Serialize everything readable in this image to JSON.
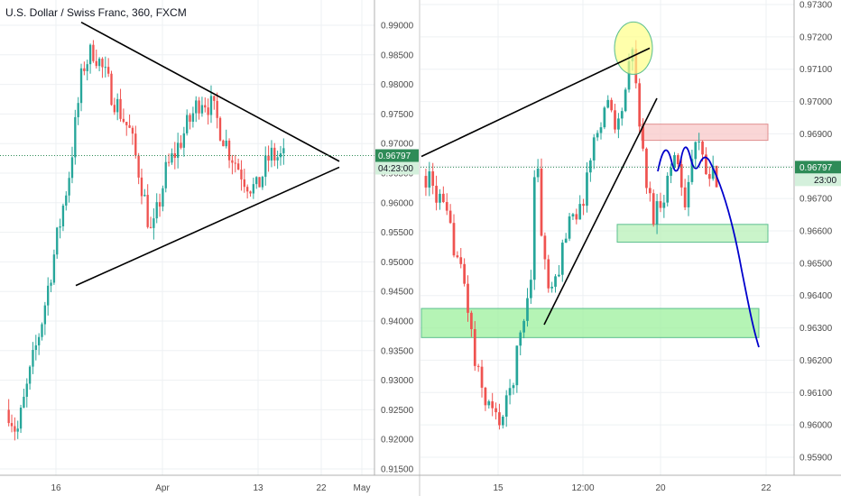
{
  "chart_data": [
    {
      "type": "candlestick",
      "title": "U.S. Dollar / Swiss Franc, 360, FXCM",
      "y_ticks": [
        "0.99000",
        "0.98500",
        "0.98000",
        "0.97500",
        "0.97000",
        "0.96500",
        "0.96000",
        "0.95500",
        "0.95000",
        "0.94500",
        "0.94000",
        "0.93500",
        "0.93000",
        "0.92500",
        "0.92000",
        "0.91500"
      ],
      "y_values": [
        0.99,
        0.985,
        0.98,
        0.975,
        0.97,
        0.965,
        0.96,
        0.955,
        0.95,
        0.945,
        0.94,
        0.935,
        0.93,
        0.925,
        0.92,
        0.915
      ],
      "x_ticks": [
        "16",
        "Apr",
        "13",
        "22",
        "May"
      ],
      "ylim": [
        0.914,
        0.993
      ],
      "last_price": "0.96797",
      "countdown": "04:23:00",
      "colors": {
        "up": "#26a69a",
        "down": "#ef5350",
        "price_tag": "#2e8b57"
      },
      "trendlines": [
        {
          "label": "triangle-upper",
          "from": [
            "Mar 18",
            0.99
          ],
          "to": [
            "Apr 27",
            0.967
          ]
        },
        {
          "label": "triangle-lower",
          "from": [
            "Mar 12",
            0.946
          ],
          "to": [
            "Apr 27",
            0.966
          ]
        }
      ],
      "series": []
    },
    {
      "type": "candlestick",
      "y_ticks": [
        "0.97300",
        "0.97200",
        "0.97100",
        "0.97000",
        "0.96900",
        "0.96800",
        "0.96700",
        "0.96600",
        "0.96500",
        "0.96400",
        "0.96300",
        "0.96200",
        "0.96100",
        "0.96000",
        "0.95900"
      ],
      "y_values": [
        0.973,
        0.972,
        0.971,
        0.97,
        0.969,
        0.968,
        0.967,
        0.966,
        0.965,
        0.964,
        0.963,
        0.962,
        0.961,
        0.96,
        0.959
      ],
      "x_ticks": [
        "15",
        "12:00",
        "20",
        "22"
      ],
      "ylim": [
        0.9585,
        0.9734
      ],
      "last_price": "0.96797",
      "countdown": "23:00",
      "colors": {
        "up": "#26a69a",
        "down": "#ef5350",
        "price_tag": "#2e8b57",
        "resistance_zone": "#f8c8c8",
        "support_zone": "#b8f0b8",
        "projection": "#0000cc",
        "highlight": "#ffff88"
      },
      "zones": [
        {
          "label": "resistance",
          "y1": 0.9693,
          "y2": 0.9688
        },
        {
          "label": "support-upper",
          "y1": 0.9662,
          "y2": 0.96565
        },
        {
          "label": "support-lower",
          "y1": 0.9636,
          "y2": 0.9627
        }
      ],
      "series": []
    }
  ]
}
